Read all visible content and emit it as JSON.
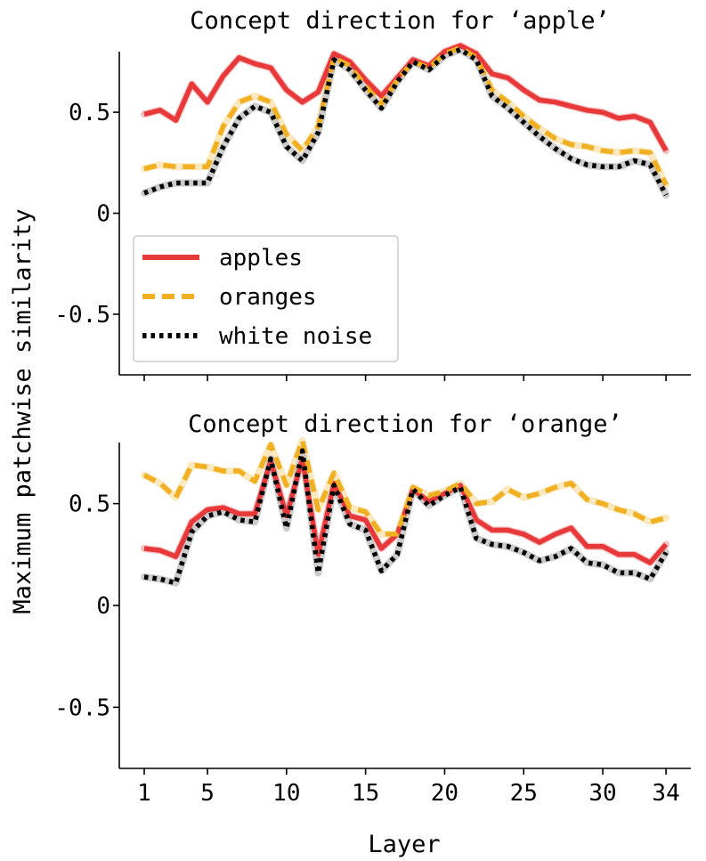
{
  "chart_data": {
    "type": "line",
    "ylabel": "Maximum patchwise similarity",
    "xlabel": "Layer",
    "xlim": [
      0,
      35.3
    ],
    "ylim": [
      -0.8,
      0.8
    ],
    "xticks": [
      1,
      5,
      10,
      15,
      20,
      25,
      30,
      34
    ],
    "yticks": [
      0.5,
      0,
      -0.5
    ],
    "ytick_labels": [
      "0.5",
      "0",
      "-0.5"
    ],
    "x": [
      1,
      2,
      3,
      4,
      5,
      6,
      7,
      8,
      9,
      10,
      11,
      12,
      13,
      14,
      15,
      16,
      17,
      18,
      19,
      20,
      21,
      22,
      23,
      24,
      25,
      26,
      27,
      28,
      29,
      30,
      31,
      32,
      33,
      34
    ],
    "legend": {
      "placement": "lower-left of top panel",
      "entries": [
        {
          "label": "apples",
          "style": "solid",
          "color": "#e8393a"
        },
        {
          "label": "oranges",
          "style": "dashed",
          "color": "#f0b022"
        },
        {
          "label": "white noise",
          "style": "dotted",
          "color": "#000000"
        }
      ]
    },
    "panels": [
      {
        "title": "Concept direction for ‘apple’",
        "series": [
          {
            "name": "apples",
            "values": [
              0.49,
              0.51,
              0.46,
              0.64,
              0.55,
              0.68,
              0.77,
              0.74,
              0.72,
              0.61,
              0.55,
              0.6,
              0.79,
              0.75,
              0.66,
              0.58,
              0.67,
              0.76,
              0.73,
              0.8,
              0.83,
              0.79,
              0.69,
              0.67,
              0.61,
              0.56,
              0.55,
              0.53,
              0.51,
              0.5,
              0.47,
              0.48,
              0.45,
              0.31
            ]
          },
          {
            "name": "oranges",
            "values": [
              0.22,
              0.24,
              0.23,
              0.23,
              0.23,
              0.43,
              0.55,
              0.58,
              0.55,
              0.39,
              0.31,
              0.43,
              0.77,
              0.73,
              0.63,
              0.54,
              0.66,
              0.75,
              0.72,
              0.79,
              0.82,
              0.77,
              0.61,
              0.55,
              0.48,
              0.42,
              0.37,
              0.34,
              0.33,
              0.31,
              0.3,
              0.31,
              0.3,
              0.14
            ]
          },
          {
            "name": "white noise",
            "values": [
              0.1,
              0.13,
              0.15,
              0.15,
              0.15,
              0.33,
              0.47,
              0.53,
              0.5,
              0.33,
              0.26,
              0.4,
              0.76,
              0.71,
              0.61,
              0.52,
              0.65,
              0.75,
              0.71,
              0.78,
              0.81,
              0.76,
              0.58,
              0.52,
              0.45,
              0.38,
              0.32,
              0.27,
              0.24,
              0.23,
              0.23,
              0.26,
              0.24,
              0.09
            ]
          }
        ]
      },
      {
        "title": "Concept direction for ‘orange’",
        "series": [
          {
            "name": "apples",
            "values": [
              0.28,
              0.27,
              0.24,
              0.41,
              0.47,
              0.48,
              0.45,
              0.45,
              0.71,
              0.44,
              0.72,
              0.25,
              0.6,
              0.44,
              0.42,
              0.28,
              0.35,
              0.57,
              0.51,
              0.55,
              0.59,
              0.42,
              0.37,
              0.37,
              0.35,
              0.31,
              0.35,
              0.38,
              0.29,
              0.29,
              0.25,
              0.25,
              0.21,
              0.3
            ]
          },
          {
            "name": "oranges",
            "values": [
              0.64,
              0.6,
              0.53,
              0.69,
              0.68,
              0.66,
              0.66,
              0.61,
              0.79,
              0.59,
              0.81,
              0.47,
              0.65,
              0.48,
              0.46,
              0.35,
              0.35,
              0.58,
              0.54,
              0.56,
              0.6,
              0.5,
              0.51,
              0.57,
              0.53,
              0.55,
              0.58,
              0.6,
              0.52,
              0.5,
              0.47,
              0.45,
              0.41,
              0.43
            ]
          },
          {
            "name": "white noise",
            "values": [
              0.14,
              0.13,
              0.11,
              0.36,
              0.44,
              0.46,
              0.42,
              0.41,
              0.72,
              0.38,
              0.76,
              0.16,
              0.59,
              0.4,
              0.37,
              0.17,
              0.25,
              0.57,
              0.49,
              0.54,
              0.58,
              0.33,
              0.3,
              0.29,
              0.26,
              0.22,
              0.24,
              0.28,
              0.21,
              0.2,
              0.16,
              0.16,
              0.13,
              0.26
            ]
          }
        ]
      }
    ]
  }
}
